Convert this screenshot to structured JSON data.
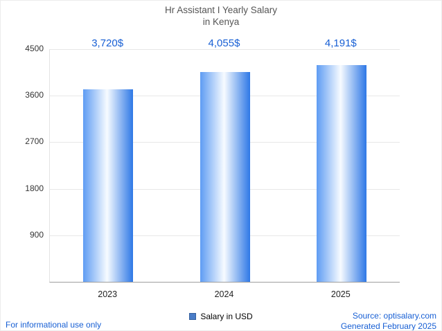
{
  "chart_data": {
    "type": "bar",
    "title": "Hr Assistant I Yearly Salary",
    "subtitle": "in Kenya",
    "categories": [
      "2023",
      "2024",
      "2025"
    ],
    "values": [
      3720,
      4055,
      4191
    ],
    "value_labels": [
      "3,720$",
      "4,055$",
      "4,191$"
    ],
    "ylim": [
      0,
      4500
    ],
    "yticks": [
      900,
      1800,
      2700,
      3600,
      4500
    ],
    "grid": true,
    "xlabel": "",
    "ylabel": "",
    "legend": {
      "label": "Salary in USD",
      "position": "bottom-center",
      "swatch_color": "#4a7cc7"
    },
    "bar_gradient": [
      "#5e9cf3",
      "#f7fbff",
      "#2e78e6"
    ],
    "accent_color": "#175fd4"
  },
  "footer": {
    "left": "For informational use only",
    "source": "Source: optisalary.com",
    "generated": "Generated February 2025"
  }
}
